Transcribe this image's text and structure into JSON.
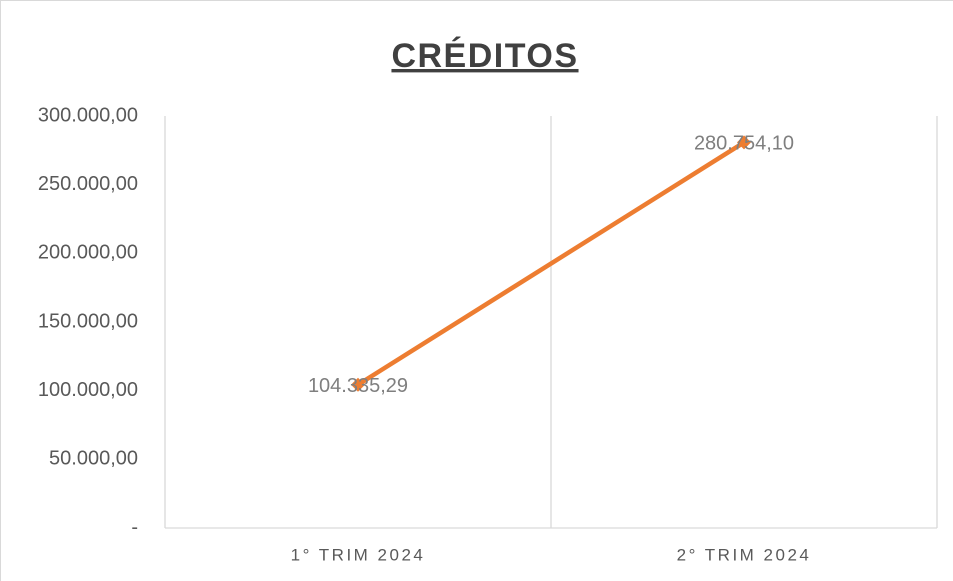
{
  "chart_data": {
    "type": "line",
    "title": "CRÉDITOS",
    "categories": [
      "1° TRIM 2024",
      "2° TRIM 2024"
    ],
    "values": [
      104335.29,
      280754.1
    ],
    "value_labels": [
      "104.335,29",
      "280.754,10"
    ],
    "color": "#ed7d31",
    "ylim": [
      0,
      300000
    ],
    "yticks": [
      {
        "value": 0,
        "label": "-"
      },
      {
        "value": 50000,
        "label": "50.000,00"
      },
      {
        "value": 100000,
        "label": "100.000,00"
      },
      {
        "value": 150000,
        "label": "150.000,00"
      },
      {
        "value": 200000,
        "label": "200.000,00"
      },
      {
        "value": 250000,
        "label": "250.000,00"
      },
      {
        "value": 300000,
        "label": "300.000,00"
      }
    ],
    "grid": false
  }
}
